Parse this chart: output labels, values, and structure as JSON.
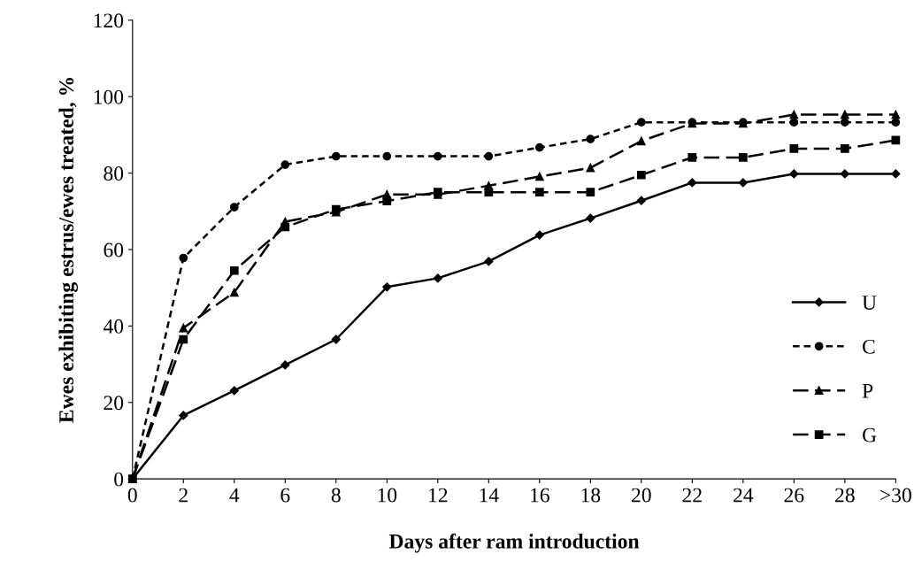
{
  "chart_data": {
    "type": "line",
    "xlabel": "Days after ram introduction",
    "ylabel": "Ewes exhibiting estrus/ewes treated, %",
    "categories": [
      "0",
      "2",
      "4",
      "6",
      "8",
      "10",
      "12",
      "14",
      "16",
      "18",
      "20",
      "22",
      "24",
      "26",
      "28",
      ">30"
    ],
    "series": [
      {
        "name": "U",
        "color": "#000000",
        "marker": "diamond",
        "line_style": "solid",
        "values": [
          0,
          16.6,
          23.1,
          29.8,
          36.5,
          50.2,
          52.5,
          56.9,
          63.8,
          68.2,
          72.8,
          77.5,
          77.5,
          79.8,
          79.8,
          79.8
        ]
      },
      {
        "name": "C",
        "color": "#000000",
        "marker": "circle",
        "line_style": "dotted",
        "values": [
          0,
          57.8,
          71.1,
          82.2,
          84.4,
          84.4,
          84.4,
          84.4,
          86.7,
          88.9,
          93.3,
          93.3,
          93.3,
          93.3,
          93.3,
          93.3
        ]
      },
      {
        "name": "P",
        "color": "#000000",
        "marker": "triangle",
        "line_style": "dashed",
        "values": [
          0,
          39.5,
          48.8,
          67.3,
          69.8,
          74.4,
          74.4,
          76.7,
          79.1,
          81.4,
          88.4,
          93.0,
          93.0,
          95.3,
          95.3,
          95.3
        ]
      },
      {
        "name": "G",
        "color": "#000000",
        "marker": "square",
        "line_style": "dashed",
        "values": [
          0,
          36.5,
          54.5,
          65.9,
          70.5,
          72.7,
          75.0,
          75.0,
          75.0,
          75.0,
          79.5,
          84.1,
          84.1,
          86.4,
          86.4,
          88.6
        ]
      }
    ],
    "ylim": [
      0,
      120
    ],
    "yticks": [
      0,
      20,
      40,
      60,
      80,
      100,
      120
    ],
    "grid": false,
    "legend": "right"
  }
}
